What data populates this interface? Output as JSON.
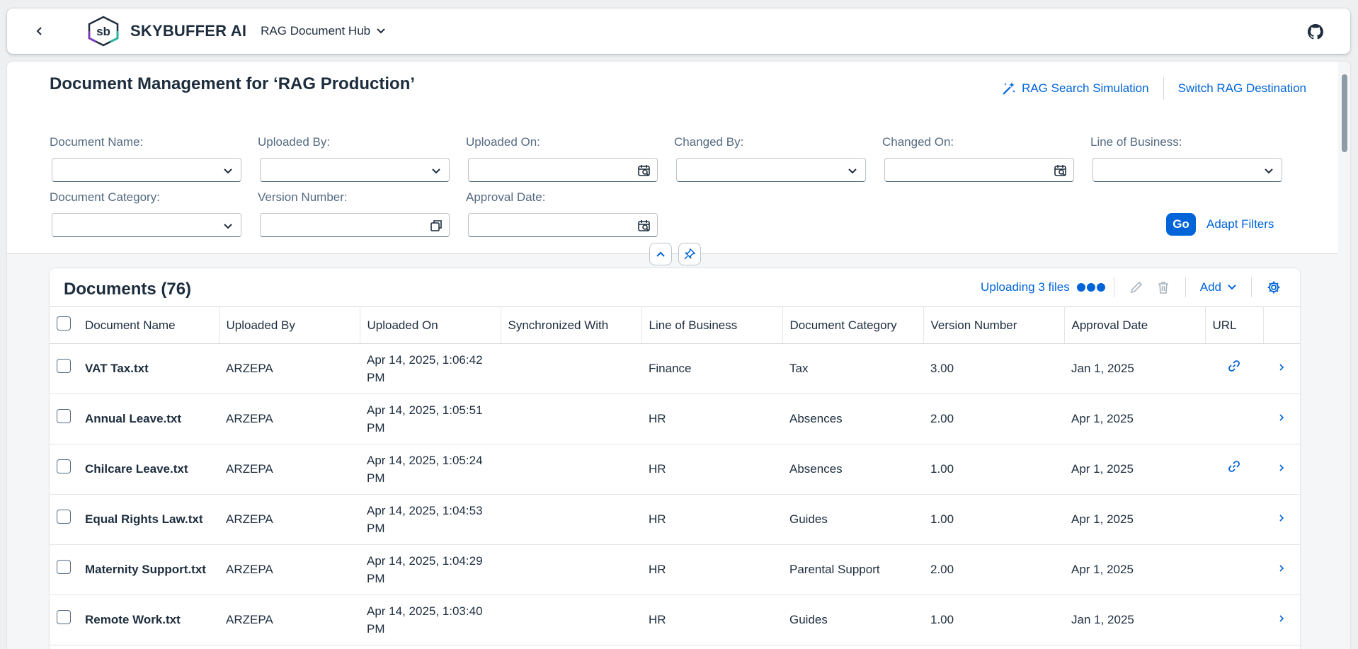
{
  "shell": {
    "brand": "SKYBUFFER AI",
    "logo_text": "sb",
    "app_title": "RAG Document Hub"
  },
  "header": {
    "title": "Document Management for ‘RAG Production’",
    "actions": {
      "search_simulation": "RAG Search Simulation",
      "switch_destination": "Switch RAG Destination"
    }
  },
  "filters": {
    "document_name": "Document Name:",
    "uploaded_by": "Uploaded By:",
    "uploaded_on": "Uploaded On:",
    "changed_by": "Changed By:",
    "changed_on": "Changed On:",
    "line_of_business": "Line of Business:",
    "document_category": "Document Category:",
    "version_number": "Version Number:",
    "approval_date": "Approval Date:",
    "go": "Go",
    "adapt": "Adapt Filters"
  },
  "table": {
    "title": "Documents (76)",
    "uploading": "Uploading 3 files",
    "add": "Add",
    "columns": [
      "Document Name",
      "Uploaded By",
      "Uploaded On",
      "Synchronized With",
      "Line of Business",
      "Document Category",
      "Version Number",
      "Approval Date",
      "URL"
    ],
    "rows": [
      {
        "name": "VAT Tax.txt",
        "by": "ARZEPA",
        "on": "Apr 14, 2025, 1:06:42 PM",
        "sync": "",
        "lob": "Finance",
        "cat": "Tax",
        "ver": "3.00",
        "date": "Jan 1, 2025",
        "link": true
      },
      {
        "name": "Annual Leave.txt",
        "by": "ARZEPA",
        "on": "Apr 14, 2025, 1:05:51 PM",
        "sync": "",
        "lob": "HR",
        "cat": "Absences",
        "ver": "2.00",
        "date": "Apr 1, 2025",
        "link": false
      },
      {
        "name": "Chilcare Leave.txt",
        "by": "ARZEPA",
        "on": "Apr 14, 2025, 1:05:24 PM",
        "sync": "",
        "lob": "HR",
        "cat": "Absences",
        "ver": "1.00",
        "date": "Apr 1, 2025",
        "link": true
      },
      {
        "name": "Equal Rights Law.txt",
        "by": "ARZEPA",
        "on": "Apr 14, 2025, 1:04:53 PM",
        "sync": "",
        "lob": "HR",
        "cat": "Guides",
        "ver": "1.00",
        "date": "Apr 1, 2025",
        "link": false
      },
      {
        "name": "Maternity Support.txt",
        "by": "ARZEPA",
        "on": "Apr 14, 2025, 1:04:29 PM",
        "sync": "",
        "lob": "HR",
        "cat": "Parental Support",
        "ver": "2.00",
        "date": "Apr 1, 2025",
        "link": false
      },
      {
        "name": "Remote Work.txt",
        "by": "ARZEPA",
        "on": "Apr 14, 2025, 1:03:40 PM",
        "sync": "",
        "lob": "HR",
        "cat": "Guides",
        "ver": "1.00",
        "date": "Jan 1, 2025",
        "link": false
      }
    ]
  },
  "colors": {
    "accent": "#0064d9",
    "text": "#1d2d3e",
    "muted": "#556b82"
  }
}
